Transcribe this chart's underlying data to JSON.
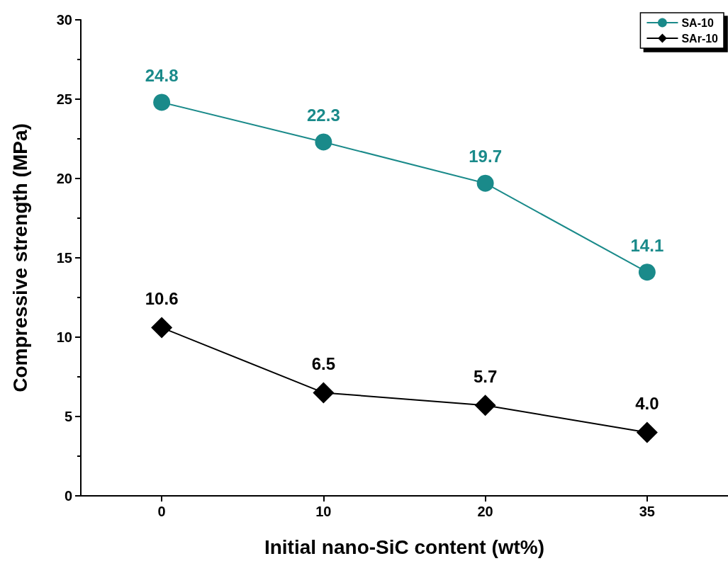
{
  "chart_data": {
    "type": "line",
    "xlabel": "Initial nano-SiC content (wt%)",
    "ylabel": "Compressive strength (MPa)",
    "categories": [
      "0",
      "10",
      "20",
      "35"
    ],
    "series": [
      {
        "name": "SA-10",
        "color": "#1a8a8a",
        "marker": "circle",
        "values": [
          24.8,
          22.3,
          19.7,
          14.1
        ],
        "value_labels": [
          "24.8",
          "22.3",
          "19.7",
          "14.1"
        ]
      },
      {
        "name": "SAr-10",
        "color": "#000000",
        "marker": "diamond",
        "values": [
          10.6,
          6.5,
          5.7,
          4.0
        ],
        "value_labels": [
          "10.6",
          "6.5",
          "5.7",
          "4.0"
        ]
      }
    ],
    "ylim": [
      0,
      30
    ],
    "yticks": [
      0,
      5,
      10,
      15,
      20,
      25,
      30
    ],
    "grid": false,
    "legend": "top right"
  }
}
